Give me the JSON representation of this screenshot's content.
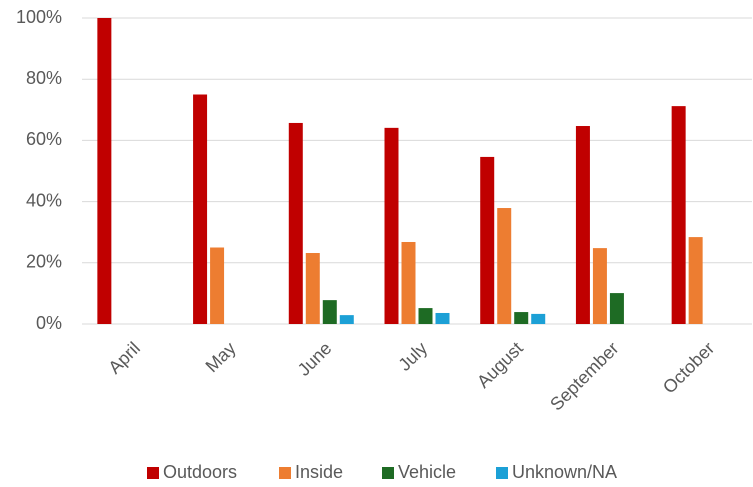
{
  "chart_data": {
    "type": "bar",
    "categories": [
      "April",
      "May",
      "June",
      "July",
      "August",
      "September",
      "October"
    ],
    "series": [
      {
        "name": "Outdoors",
        "color": "#c00000",
        "values": [
          100,
          75,
          65.7,
          64.1,
          54.6,
          64.7,
          71.2
        ]
      },
      {
        "name": "Inside",
        "color": "#ed7d31",
        "values": [
          0,
          25,
          23.2,
          26.8,
          37.9,
          24.8,
          28.4
        ]
      },
      {
        "name": "Vehicle",
        "color": "#1e6b24",
        "values": [
          0,
          0,
          7.8,
          5.2,
          3.9,
          10.1,
          0
        ]
      },
      {
        "name": "Unknown/NA",
        "color": "#1ca0d6",
        "values": [
          0,
          0,
          2.9,
          3.6,
          3.3,
          0,
          0
        ]
      }
    ],
    "ylim": [
      0,
      100
    ],
    "yticks": [
      {
        "value": 0,
        "label": "0%"
      },
      {
        "value": 20,
        "label": "20%"
      },
      {
        "value": 40,
        "label": "40%"
      },
      {
        "value": 60,
        "label": "60%"
      },
      {
        "value": 80,
        "label": "80%"
      },
      {
        "value": 100,
        "label": "100%"
      }
    ],
    "grid": true,
    "legend": "bottom"
  }
}
